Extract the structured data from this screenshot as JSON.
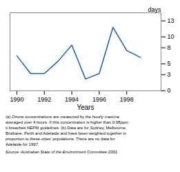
{
  "chart_data": {
    "type": "line",
    "x": [
      1990,
      1991,
      1992,
      1993,
      1994,
      1995,
      1996,
      1997,
      1998,
      1999
    ],
    "values": [
      6.5,
      3.2,
      3.2,
      5.5,
      8.5,
      2.2,
      3.2,
      11.8,
      7.5,
      6.2
    ],
    "color": "#1e5bbf",
    "xlabel": "Years",
    "ylabel": "days",
    "xlim": [
      1989.5,
      2000.5
    ],
    "ylim": [
      0,
      14.5
    ],
    "xticks": [
      1990,
      1992,
      1994,
      1996,
      1998
    ],
    "yticks": [
      0,
      3,
      5,
      8,
      10,
      13
    ],
    "footnote": "(a) Ozone concentrations are measured by the hourly maxima\naveraged over 4 hours. If this concentration is higher than 0.08ppm\nit breaches NEPM guidelines. (b) Data are for Sydney, Melbourne,\nBrisbane, Perth and Adelaide and have been weighted together in\nproportion to these cities’ populations. There are no data for\nAdelaide for 1997.",
    "source": "Source: Australian State of the Environment Committee 2001."
  }
}
